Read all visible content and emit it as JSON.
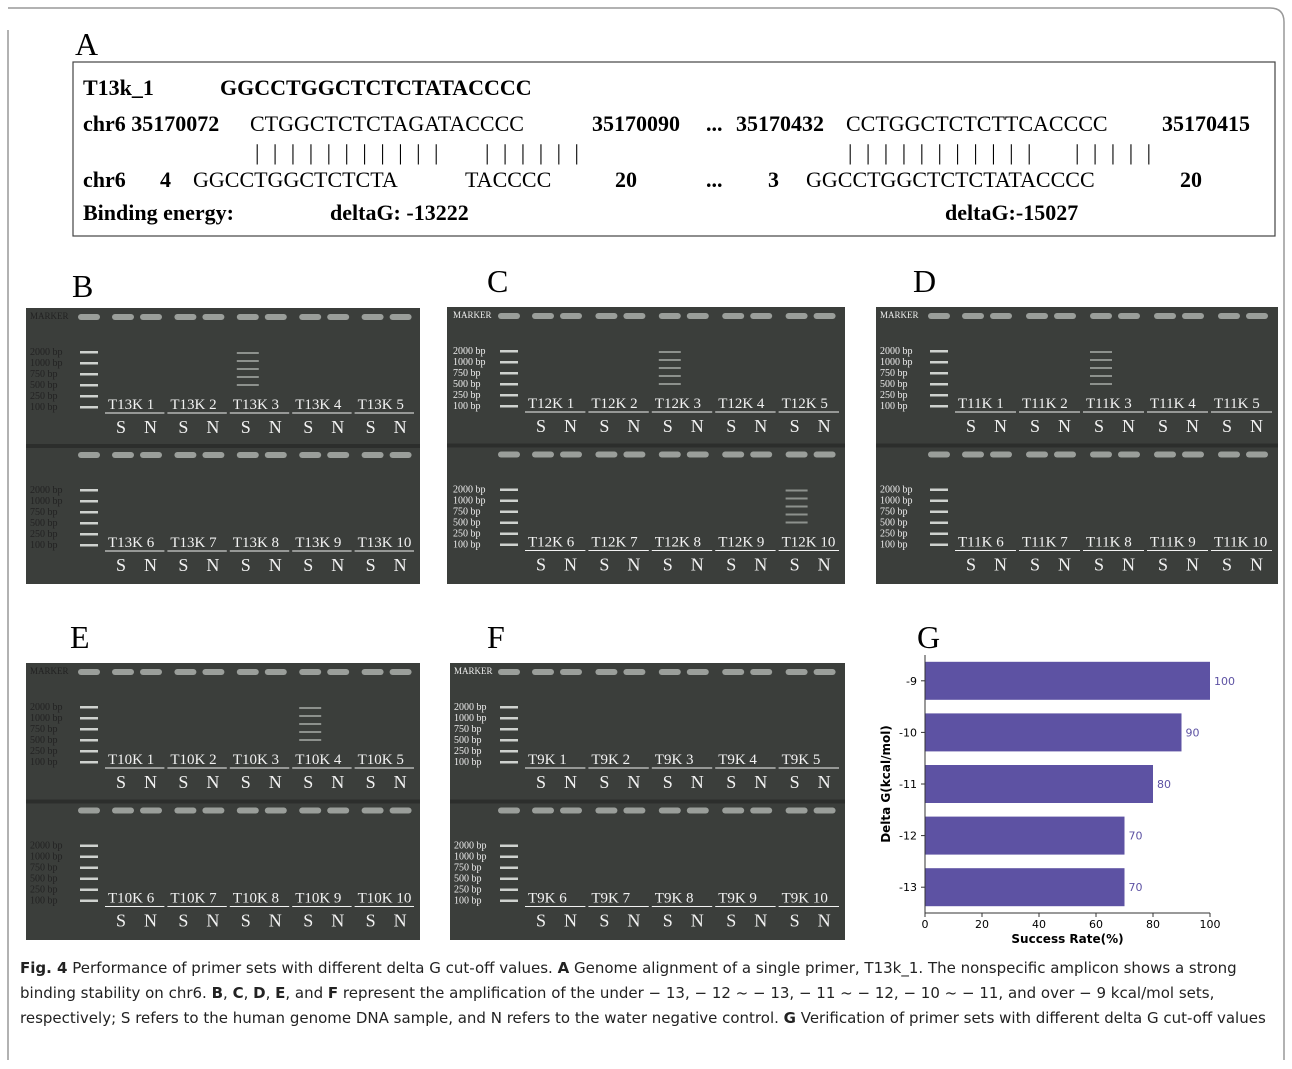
{
  "panel_a": {
    "label": "A",
    "row1": [
      "T13k_1",
      "GGCCTGGCTCTCTATACCCC"
    ],
    "row2": [
      "chr6 35170072",
      "CTGGCTCTCTAGATACCCC",
      "35170090",
      "...",
      "35170432",
      "CCTGGCTCTCTTCACCCC",
      "35170415"
    ],
    "row3": [
      "| | | | | | | | | | |",
      "| | | | | |",
      "| | | | | | | | | | |",
      "| | | | |"
    ],
    "row4": [
      "chr6",
      "4",
      "GGCCTGGCTCTCTA",
      "TACCCC",
      "20",
      "...",
      "3",
      "GGCCTGGCTCTCTATACCCC",
      "20"
    ],
    "row5": [
      "Binding energy:",
      "deltaG: -13222",
      "deltaG:-15027"
    ]
  },
  "lanes": [
    "S",
    "N"
  ],
  "gels": [
    {
      "label": "B",
      "marker": "MARKER",
      "ladder": [
        "2000 bp",
        "1000 bp",
        "750 bp",
        "500 bp",
        "250 bp",
        "100 bp"
      ],
      "samples": [
        "T13K 1",
        "T13K 2",
        "T13K 3",
        "T13K 4",
        "T13K 5",
        "T13K 6",
        "T13K 7",
        "T13K 8",
        "T13K 9",
        "T13K 10"
      ]
    },
    {
      "label": "C",
      "marker": "MARKER",
      "ladder": [
        "2000 bp",
        "1000 bp",
        "750 bp",
        "500 bp",
        "250 bp",
        "100 bp"
      ],
      "samples": [
        "T12K 1",
        "T12K 2",
        "T12K 3",
        "T12K 4",
        "T12K 5",
        "T12K 6",
        "T12K 7",
        "T12K 8",
        "T12K 9",
        "T12K 10"
      ]
    },
    {
      "label": "D",
      "marker": "MARKER",
      "ladder": [
        "2000 bp",
        "1000 bp",
        "750 bp",
        "500 bp",
        "250 bp",
        "100 bp"
      ],
      "samples": [
        "T11K 1",
        "T11K 2",
        "T11K 3",
        "T11K 4",
        "T11K 5",
        "T11K 6",
        "T11K 7",
        "T11K 8",
        "T11K 9",
        "T11K 10"
      ]
    },
    {
      "label": "E",
      "marker": "MARKER",
      "ladder": [
        "2000 bp",
        "1000 bp",
        "750 bp",
        "500 bp",
        "250 bp",
        "100 bp"
      ],
      "samples": [
        "T10K 1",
        "T10K 2",
        "T10K 3",
        "T10K 4",
        "T10K 5",
        "T10K 6",
        "T10K 7",
        "T10K 8",
        "T10K 9",
        "T10K 10"
      ]
    },
    {
      "label": "F",
      "marker": "MARKER",
      "ladder": [
        "2000 bp",
        "1000 bp",
        "750 bp",
        "500 bp",
        "250 bp",
        "100 bp"
      ],
      "samples": [
        "T9K 1",
        "T9K 2",
        "T9K 3",
        "T9K 4",
        "T9K 5",
        "T9K 6",
        "T9K 7",
        "T9K 8",
        "T9K 9",
        "T9K 10"
      ]
    }
  ],
  "panel_g": {
    "label": "G"
  },
  "chart_data": {
    "type": "hbar",
    "categories": [
      "-9",
      "-10",
      "-11",
      "-12",
      "-13"
    ],
    "values": [
      100,
      90,
      80,
      70,
      70
    ],
    "color": "#5d52a3",
    "xlim": [
      0,
      100
    ],
    "xticks": [
      0,
      20,
      40,
      60,
      80,
      100
    ],
    "xlabel": "Success Rate(%)",
    "ylabel": "Delta G(kcal/mol)"
  },
  "caption": [
    "Fig. 4",
    " Performance of primer sets with different delta G cut-off values. ",
    "A",
    " Genome alignment of a single primer, T13k_1. The nonspecific amplicon shows a strong binding stability on chr6. ",
    "B",
    ", ",
    "C",
    ", ",
    "D",
    ", ",
    "E",
    ", and ",
    "F",
    " represent the amplification of the under − 13, − 12 ~ − 13, − 11 ~ − 12, − 10 ~ − 11, and over − 9 kcal/mol sets, respectively; S refers to the human genome DNA sample, and N refers to the water negative control. ",
    "G",
    " Verification of primer sets with different delta G cut-off values"
  ]
}
